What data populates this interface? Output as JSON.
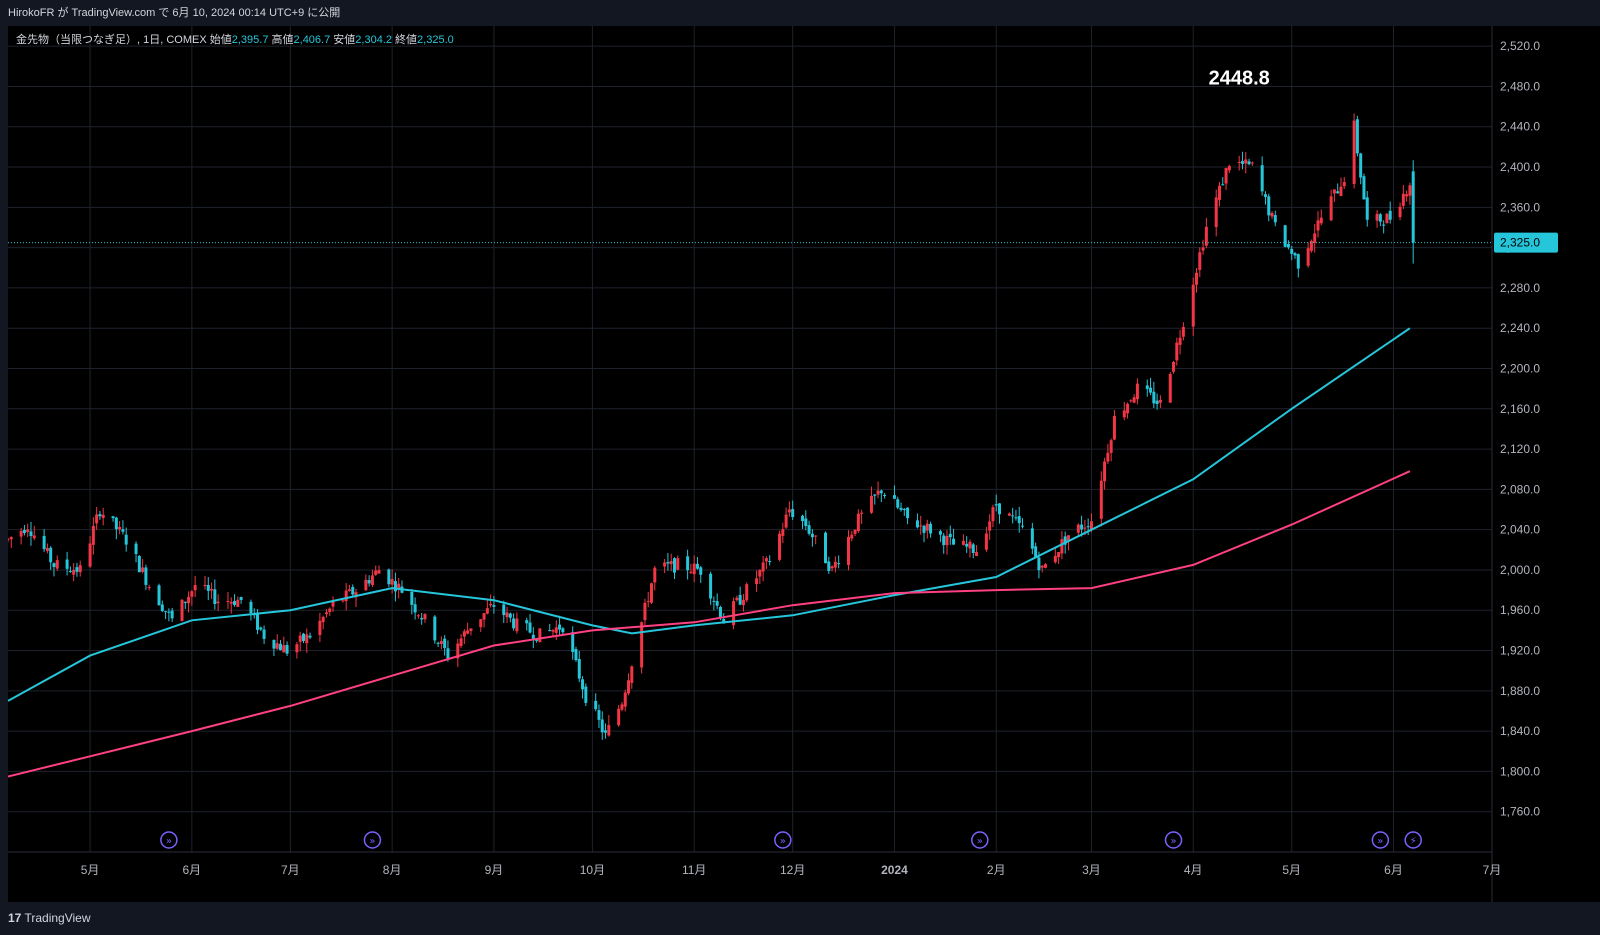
{
  "header": {
    "publisher": "HirokoFR が TradingView.com で 6月 10, 2024 00:14 UTC+9 に公開"
  },
  "legend": {
    "symbol": "金先物（当限つなぎ足）, 1日, COMEX",
    "open_label": "始値",
    "open": "2,395.7",
    "high_label": "高値",
    "high": "2,406.7",
    "low_label": "安値",
    "low": "2,304.2",
    "close_label": "終値",
    "close": "2,325.0"
  },
  "footer": {
    "brand": "TradingView"
  },
  "colors": {
    "up": "#f23645",
    "down": "#26c6da",
    "ma_short": "#26c6da",
    "ma_long": "#ff4081",
    "background": "#000000",
    "grid": "#1e222d",
    "price_label_bg": "#26c6da",
    "event_marker": "#7b61ff"
  },
  "chart_data": {
    "type": "candlestick",
    "title": "",
    "ylim": [
      1720,
      2540
    ],
    "y_ticks": [
      "1,760.0",
      "1,800.0",
      "1,840.0",
      "1,880.0",
      "1,920.0",
      "1,960.0",
      "2,000.0",
      "2,040.0",
      "2,080.0",
      "2,120.0",
      "2,160.0",
      "2,200.0",
      "2,240.0",
      "2,280.0",
      "2,320.0",
      "2,360.0",
      "2,400.0",
      "2,440.0",
      "2,480.0",
      "2,520.0"
    ],
    "y_tick_values": [
      1760,
      1800,
      1840,
      1880,
      1920,
      1960,
      2000,
      2040,
      2080,
      2120,
      2160,
      2200,
      2240,
      2280,
      2320,
      2360,
      2400,
      2440,
      2480,
      2520
    ],
    "x_ticks": [
      {
        "label": "5月",
        "date": "2023-05-01"
      },
      {
        "label": "6月",
        "date": "2023-06-01"
      },
      {
        "label": "7月",
        "date": "2023-07-01"
      },
      {
        "label": "8月",
        "date": "2023-08-01"
      },
      {
        "label": "9月",
        "date": "2023-09-01"
      },
      {
        "label": "10月",
        "date": "2023-10-01"
      },
      {
        "label": "11月",
        "date": "2023-11-01"
      },
      {
        "label": "12月",
        "date": "2023-12-01"
      },
      {
        "label": "2024",
        "date": "2024-01-01"
      },
      {
        "label": "2月",
        "date": "2024-02-01"
      },
      {
        "label": "3月",
        "date": "2024-03-01"
      },
      {
        "label": "4月",
        "date": "2024-04-01"
      },
      {
        "label": "5月",
        "date": "2024-05-01"
      },
      {
        "label": "6月",
        "date": "2024-06-01"
      },
      {
        "label": "7月",
        "date": "2024-07-01"
      }
    ],
    "x_range": [
      "2023-04-06",
      "2024-07-01"
    ],
    "last_price": 2325.0,
    "last_price_label": "2,325.0",
    "annotation": {
      "text": "2448.8",
      "date": "2024-04-15",
      "price": 2490
    },
    "price_path": [
      [
        "2023-04-06",
        2030
      ],
      [
        "2023-04-12",
        2045
      ],
      [
        "2023-04-20",
        2005
      ],
      [
        "2023-04-28",
        2000
      ],
      [
        "2023-05-04",
        2060
      ],
      [
        "2023-05-12",
        2030
      ],
      [
        "2023-05-19",
        1985
      ],
      [
        "2023-05-26",
        1950
      ],
      [
        "2023-06-02",
        1985
      ],
      [
        "2023-06-09",
        1970
      ],
      [
        "2023-06-16",
        1970
      ],
      [
        "2023-06-23",
        1935
      ],
      [
        "2023-06-30",
        1920
      ],
      [
        "2023-07-07",
        1935
      ],
      [
        "2023-07-14",
        1965
      ],
      [
        "2023-07-21",
        1980
      ],
      [
        "2023-07-28",
        2000
      ],
      [
        "2023-08-04",
        1980
      ],
      [
        "2023-08-11",
        1950
      ],
      [
        "2023-08-18",
        1915
      ],
      [
        "2023-08-25",
        1945
      ],
      [
        "2023-09-01",
        1965
      ],
      [
        "2023-09-08",
        1945
      ],
      [
        "2023-09-15",
        1935
      ],
      [
        "2023-09-22",
        1945
      ],
      [
        "2023-09-29",
        1875
      ],
      [
        "2023-10-05",
        1835
      ],
      [
        "2023-10-10",
        1870
      ],
      [
        "2023-10-20",
        2000
      ],
      [
        "2023-10-27",
        2005
      ],
      [
        "2023-11-03",
        2000
      ],
      [
        "2023-11-10",
        1950
      ],
      [
        "2023-11-17",
        1980
      ],
      [
        "2023-11-24",
        2010
      ],
      [
        "2023-11-30",
        2060
      ],
      [
        "2023-12-05",
        2045
      ],
      [
        "2023-12-13",
        2000
      ],
      [
        "2023-12-20",
        2045
      ],
      [
        "2023-12-28",
        2080
      ],
      [
        "2024-01-05",
        2050
      ],
      [
        "2024-01-12",
        2040
      ],
      [
        "2024-01-19",
        2025
      ],
      [
        "2024-01-26",
        2020
      ],
      [
        "2024-02-01",
        2065
      ],
      [
        "2024-02-09",
        2040
      ],
      [
        "2024-02-15",
        2000
      ],
      [
        "2024-02-23",
        2035
      ],
      [
        "2024-03-01",
        2050
      ],
      [
        "2024-03-08",
        2150
      ],
      [
        "2024-03-15",
        2180
      ],
      [
        "2024-03-22",
        2165
      ],
      [
        "2024-03-28",
        2235
      ],
      [
        "2024-04-05",
        2340
      ],
      [
        "2024-04-12",
        2405
      ],
      [
        "2024-04-19",
        2400
      ],
      [
        "2024-04-26",
        2340
      ],
      [
        "2024-05-03",
        2305
      ],
      [
        "2024-05-10",
        2350
      ],
      [
        "2024-05-17",
        2390
      ],
      [
        "2024-05-20",
        2440
      ],
      [
        "2024-05-24",
        2345
      ],
      [
        "2024-05-31",
        2350
      ],
      [
        "2024-06-06",
        2385
      ],
      [
        "2024-06-07",
        2325
      ]
    ],
    "series": [
      {
        "name": "",
        "type": "line",
        "color_key": "ma_short",
        "points": [
          [
            "2023-04-06",
            1870
          ],
          [
            "2023-05-01",
            1915
          ],
          [
            "2023-06-01",
            1950
          ],
          [
            "2023-07-01",
            1960
          ],
          [
            "2023-08-01",
            1982
          ],
          [
            "2023-09-01",
            1970
          ],
          [
            "2023-10-01",
            1945
          ],
          [
            "2023-10-13",
            1937
          ],
          [
            "2023-11-01",
            1945
          ],
          [
            "2023-12-01",
            1955
          ],
          [
            "2024-01-01",
            1975
          ],
          [
            "2024-02-01",
            1993
          ],
          [
            "2024-03-01",
            2040
          ],
          [
            "2024-04-01",
            2090
          ],
          [
            "2024-05-01",
            2160
          ],
          [
            "2024-06-06",
            2240
          ]
        ]
      },
      {
        "name": "",
        "type": "line",
        "color_key": "ma_long",
        "points": [
          [
            "2023-04-06",
            1795
          ],
          [
            "2023-05-01",
            1815
          ],
          [
            "2023-06-01",
            1840
          ],
          [
            "2023-07-01",
            1865
          ],
          [
            "2023-08-01",
            1895
          ],
          [
            "2023-09-01",
            1925
          ],
          [
            "2023-10-01",
            1940
          ],
          [
            "2023-11-01",
            1948
          ],
          [
            "2023-12-01",
            1965
          ],
          [
            "2024-01-01",
            1977
          ],
          [
            "2024-02-01",
            1980
          ],
          [
            "2024-03-01",
            1982
          ],
          [
            "2024-04-01",
            2005
          ],
          [
            "2024-05-01",
            2045
          ],
          [
            "2024-06-06",
            2098
          ]
        ]
      }
    ],
    "event_markers": [
      {
        "date": "2023-05-25",
        "kind": "dividend"
      },
      {
        "date": "2023-07-26",
        "kind": "dividend"
      },
      {
        "date": "2023-11-28",
        "kind": "dividend"
      },
      {
        "date": "2024-01-27",
        "kind": "dividend"
      },
      {
        "date": "2024-03-26",
        "kind": "dividend"
      },
      {
        "date": "2024-05-28",
        "kind": "dividend"
      },
      {
        "date": "2024-06-07",
        "kind": "flash"
      }
    ],
    "grid": true,
    "legend_position": "top-left"
  }
}
